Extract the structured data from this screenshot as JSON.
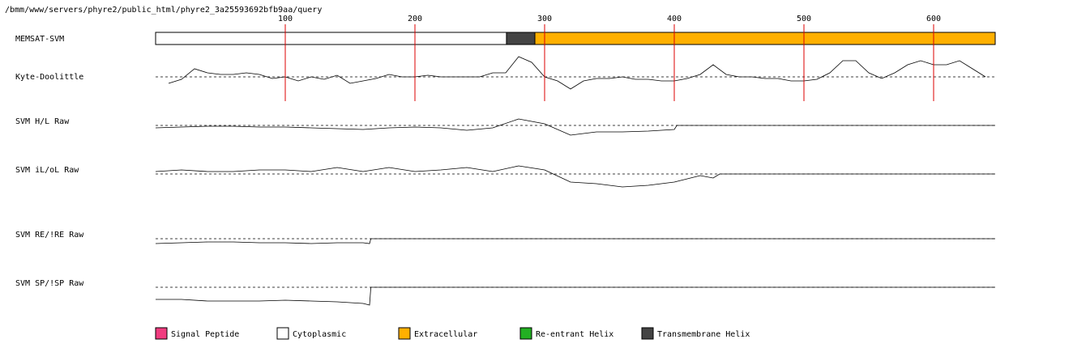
{
  "path": "/bmm/www/servers/phyre2/public_html/phyre2_3a25593692bfb9aa/query",
  "chart_data": {
    "type": "line",
    "xlim": [
      0,
      647.5
    ],
    "xticks": [
      100,
      200,
      300,
      400,
      500,
      600
    ],
    "ylim": [
      -25,
      25
    ],
    "bar": {
      "label": "MEMSAT-SVM",
      "segments": [
        {
          "start": 0,
          "end": 270.6,
          "color": "#ffffff"
        },
        {
          "start": 270.6,
          "end": 292.5,
          "color": "#444444"
        },
        {
          "start": 292.5,
          "end": 647.5,
          "color": "#ffb000"
        }
      ]
    },
    "tracks": [
      {
        "name": "Kyte-Doolittle",
        "x": [
          10,
          20,
          30,
          40,
          50,
          60,
          70,
          80,
          90,
          100,
          110,
          120,
          130,
          140,
          150,
          160,
          170,
          180,
          190,
          200,
          210,
          220,
          230,
          240,
          250,
          260,
          270,
          280,
          290,
          300,
          310,
          320,
          330,
          340,
          350,
          360,
          370,
          380,
          390,
          400,
          410,
          420,
          430,
          440,
          450,
          460,
          470,
          480,
          490,
          500,
          510,
          520,
          530,
          540,
          550,
          560,
          570,
          580,
          590,
          600,
          610,
          620,
          630,
          640
        ],
        "values": [
          -8,
          -3,
          10,
          5,
          3,
          3,
          5,
          3,
          -2,
          0,
          -5,
          0,
          -3,
          2,
          -8,
          -5,
          -2,
          3,
          0,
          0,
          2,
          0,
          0,
          0,
          0,
          5,
          5,
          25,
          18,
          0,
          -5,
          -15,
          -5,
          -2,
          -2,
          0,
          -3,
          -3,
          -5,
          -5,
          -2,
          3,
          15,
          3,
          0,
          0,
          -2,
          -2,
          -5,
          -5,
          -3,
          5,
          20,
          20,
          5,
          -2,
          5,
          15,
          20,
          15,
          15,
          20,
          10,
          0
        ]
      },
      {
        "name": "SVM H/L Raw",
        "x": [
          0,
          20,
          40,
          60,
          80,
          100,
          120,
          140,
          160,
          180,
          200,
          220,
          240,
          260,
          280,
          300,
          320,
          340,
          360,
          380,
          400,
          402,
          647.5
        ],
        "values": [
          -3,
          -2,
          -1,
          -1,
          -2,
          -2,
          -3,
          -4,
          -5,
          -3,
          -2,
          -3,
          -6,
          -3,
          8,
          2,
          -12,
          -8,
          -8,
          -7,
          -5,
          0,
          0
        ]
      },
      {
        "name": "SVM iL/oL Raw",
        "x": [
          0,
          20,
          40,
          60,
          80,
          100,
          120,
          140,
          160,
          180,
          200,
          220,
          240,
          260,
          280,
          300,
          320,
          340,
          360,
          380,
          400,
          420,
          430,
          435,
          647.5
        ],
        "values": [
          3,
          5,
          3,
          3,
          5,
          5,
          3,
          8,
          3,
          8,
          3,
          5,
          8,
          3,
          10,
          5,
          -10,
          -12,
          -16,
          -14,
          -10,
          -2,
          -5,
          0,
          0
        ]
      },
      {
        "name": "SVM RE/!RE Raw",
        "x": [
          0,
          20,
          40,
          60,
          80,
          100,
          120,
          140,
          160,
          165,
          166,
          647.5
        ],
        "values": [
          -6,
          -5,
          -4,
          -4,
          -5,
          -5,
          -6,
          -5,
          -5,
          -6,
          0,
          0
        ]
      },
      {
        "name": "SVM SP/!SP Raw",
        "x": [
          0,
          20,
          40,
          60,
          80,
          100,
          120,
          140,
          160,
          165,
          166,
          647.5
        ],
        "values": [
          -15,
          -15,
          -17,
          -17,
          -17,
          -16,
          -17,
          -18,
          -20,
          -22,
          0,
          0
        ]
      }
    ],
    "legend": [
      {
        "label": "Signal Peptide",
        "color": "#f03c7f"
      },
      {
        "label": "Cytoplasmic",
        "color": "#ffffff"
      },
      {
        "label": "Extracellular",
        "color": "#ffb000"
      },
      {
        "label": "Re-entrant Helix",
        "color": "#22b022"
      },
      {
        "label": "Transmembrane Helix",
        "color": "#444444"
      }
    ]
  }
}
